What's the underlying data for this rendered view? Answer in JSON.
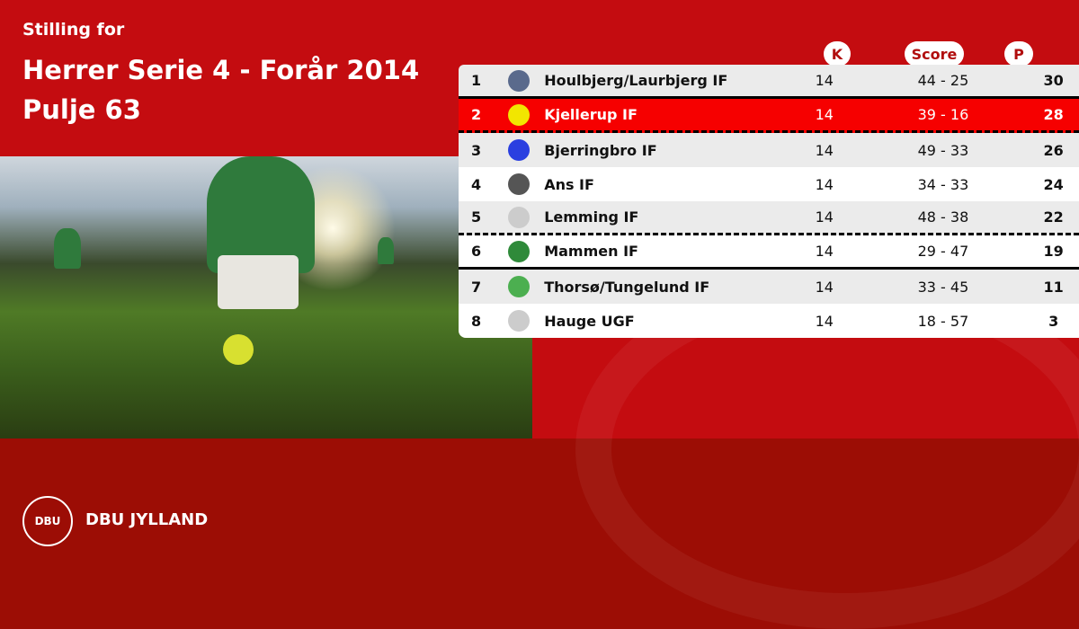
{
  "header": {
    "subtitle": "Stilling for",
    "title_line1": "Herrer Serie 4 - Forår 2014",
    "title_line2": "Pulje 63"
  },
  "columns": {
    "k": "K",
    "score": "Score",
    "p": "P"
  },
  "rows": [
    {
      "pos": "1",
      "team": "Houlbjerg/Laurbjerg IF",
      "k": "14",
      "score": "44 - 25",
      "p": "30",
      "logo_color": "#5a6a8c"
    },
    {
      "pos": "2",
      "team": "Kjellerup IF",
      "k": "14",
      "score": "39 - 16",
      "p": "28",
      "logo_color": "#f2e600",
      "highlight": true
    },
    {
      "pos": "3",
      "team": "Bjerringbro IF",
      "k": "14",
      "score": "49 - 33",
      "p": "26",
      "logo_color": "#2a3fe0"
    },
    {
      "pos": "4",
      "team": "Ans IF",
      "k": "14",
      "score": "34 - 33",
      "p": "24",
      "logo_color": "#555555"
    },
    {
      "pos": "5",
      "team": "Lemming IF",
      "k": "14",
      "score": "48 - 38",
      "p": "22",
      "logo_color": "#cccccc"
    },
    {
      "pos": "6",
      "team": "Mammen IF",
      "k": "14",
      "score": "29 - 47",
      "p": "19",
      "logo_color": "#2f8a3a"
    },
    {
      "pos": "7",
      "team": "Thorsø/Tungelund IF",
      "k": "14",
      "score": "33 - 45",
      "p": "11",
      "logo_color": "#4caf50"
    },
    {
      "pos": "8",
      "team": "Hauge UGF",
      "k": "14",
      "score": "18 - 57",
      "p": "3",
      "logo_color": "#cccccc"
    }
  ],
  "footer": {
    "logo_text": "DBU",
    "org": "DBU JYLLAND"
  },
  "colors": {
    "brand_red": "#c40c10",
    "footer_red": "#9c0d05",
    "highlight": "#f60000"
  }
}
